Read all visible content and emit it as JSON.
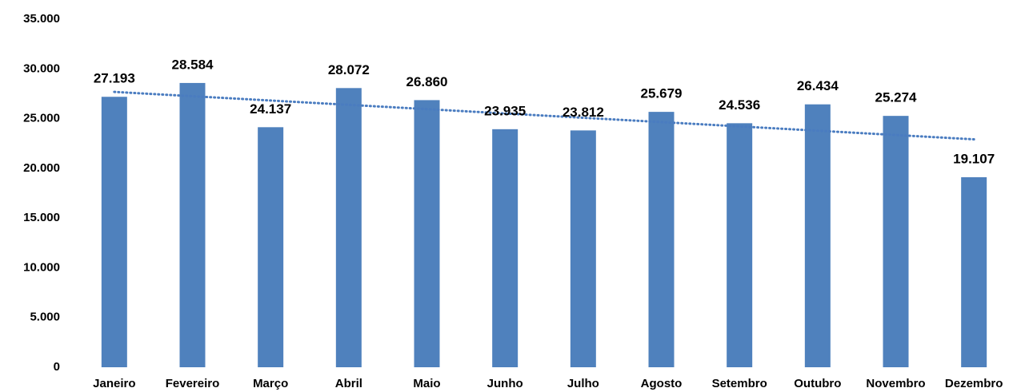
{
  "chart_data": {
    "type": "bar",
    "categories": [
      "Janeiro",
      "Fevereiro",
      "Março",
      "Abril",
      "Maio",
      "Junho",
      "Julho",
      "Agosto",
      "Setembro",
      "Outubro",
      "Novembro",
      "Dezembro"
    ],
    "values": [
      27193,
      28584,
      24137,
      28072,
      26860,
      23935,
      23812,
      25679,
      24536,
      26434,
      25274,
      19107
    ],
    "value_labels": [
      "27.193",
      "28.584",
      "24.137",
      "28.072",
      "26.860",
      "23.935",
      "23.812",
      "25.679",
      "24.536",
      "26.434",
      "25.274",
      "19.107"
    ],
    "color": "#4f81bd",
    "trendline": {
      "type": "linear",
      "color": "#4a7cc0"
    },
    "ylim": [
      0,
      35000
    ],
    "yticks": [
      0,
      {
        "value": 5000,
        "label": "5.000"
      },
      {
        "value": 10000,
        "label": "10.000"
      },
      {
        "value": 15000,
        "label": "15.000"
      },
      {
        "value": 20000,
        "label": "20.000"
      },
      {
        "value": 25000,
        "label": "25.000"
      },
      {
        "value": 30000,
        "label": "30.000"
      },
      {
        "value": 35000,
        "label": "35.000"
      }
    ],
    "grid": false
  }
}
